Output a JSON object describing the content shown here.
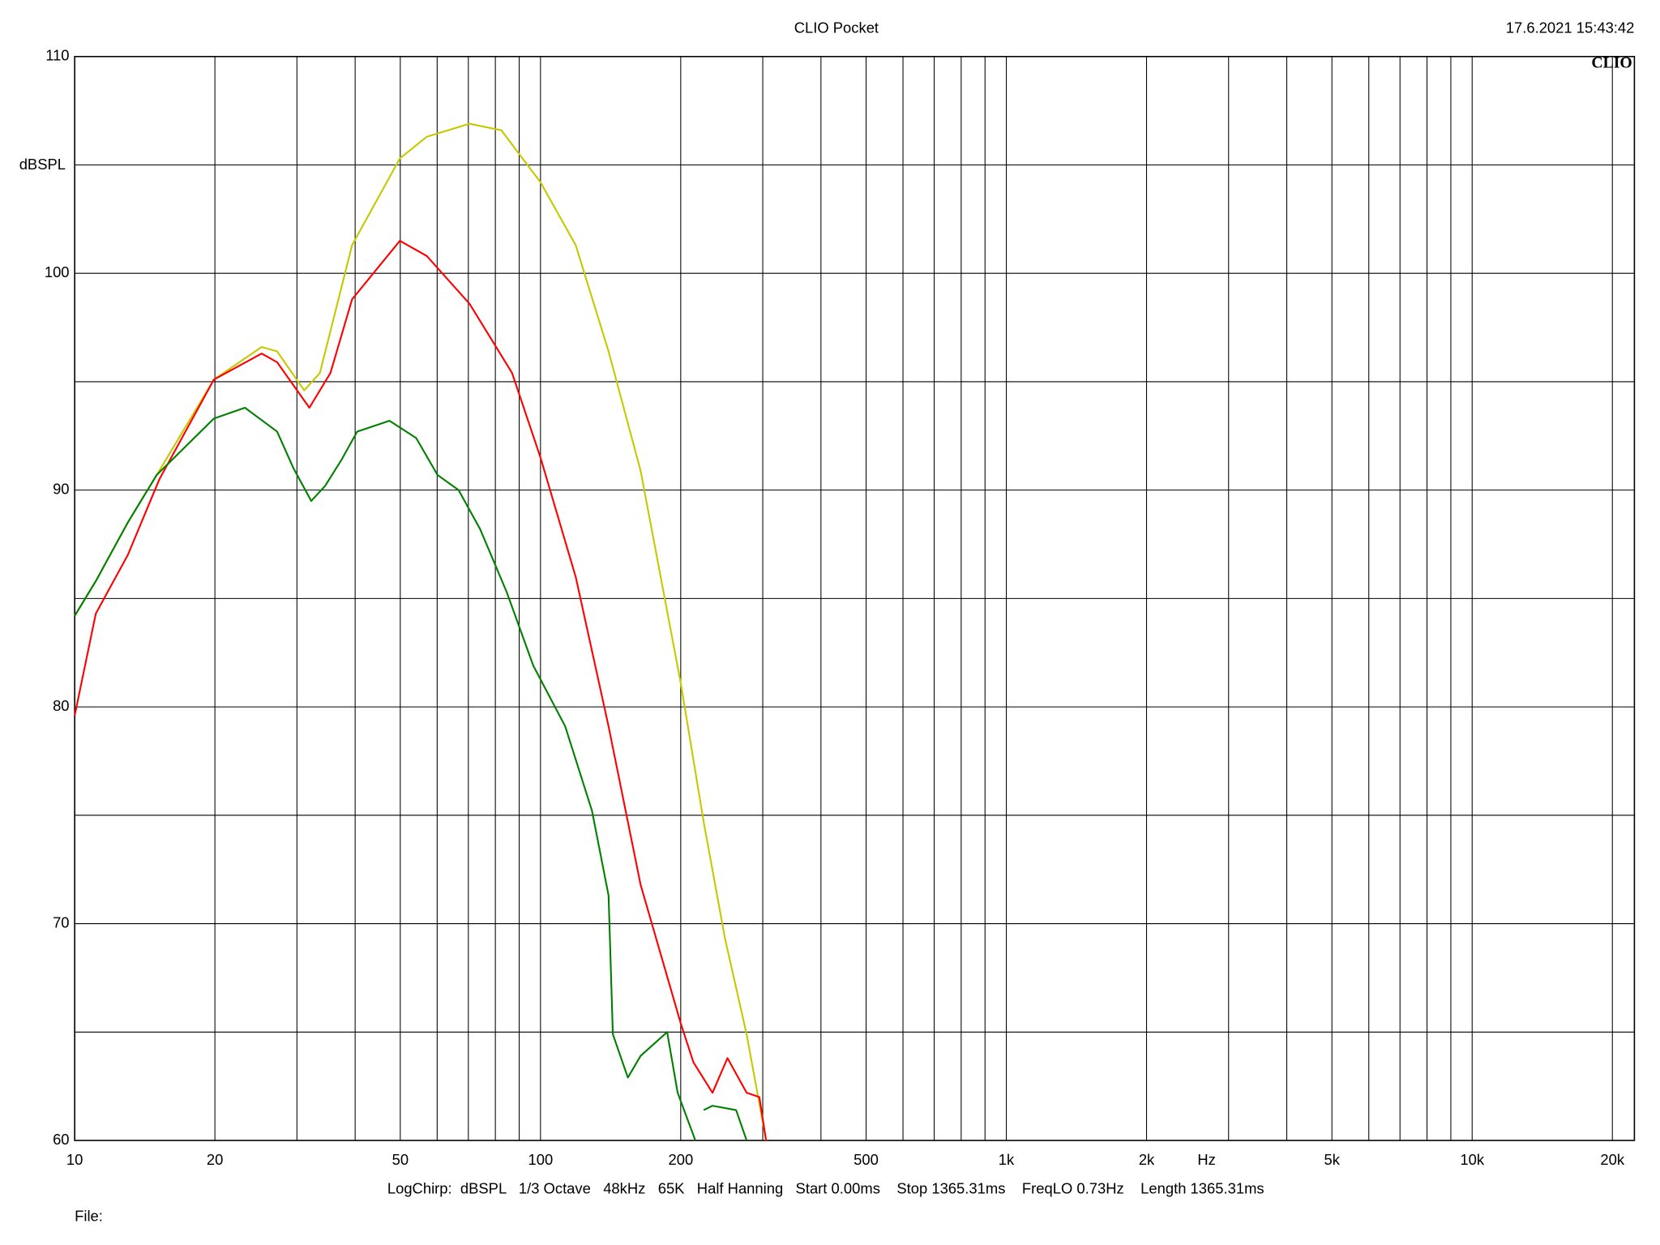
{
  "chart_data": {
    "type": "line",
    "title": "CLIO Pocket",
    "timestamp": "17.6.2021 15:43:42",
    "logo": "CLIO",
    "xlabel": "Hz",
    "ylabel": "dBSPL",
    "footer": "LogChirp:  dBSPL   1/3 Octave   48kHz   65K   Half Hanning   Start 0.00ms    Stop 1365.31ms    FreqLO 0.73Hz    Length 1365.31ms",
    "file_label": "File:",
    "xscale": "log",
    "grid": true,
    "xlim": [
      10,
      22300
    ],
    "ylim": [
      60,
      110
    ],
    "xticks": [
      10,
      20,
      50,
      100,
      200,
      500,
      {
        "value": 1000,
        "label": "1k"
      },
      {
        "value": 2000,
        "label": "2k"
      },
      {
        "value": 5000,
        "label": "5k"
      },
      {
        "value": 10000,
        "label": "10k"
      },
      {
        "value": 20000,
        "label": "20k"
      }
    ],
    "x_minor_ticks": [
      30,
      40,
      60,
      70,
      80,
      90,
      300,
      400,
      600,
      700,
      800,
      900,
      3000,
      4000,
      6000,
      7000,
      8000,
      9000
    ],
    "yticks": [
      60,
      70,
      80,
      90,
      100,
      110
    ],
    "y_minor_ticks": [
      65,
      75,
      85,
      95,
      105
    ],
    "series": [
      {
        "name": "yellow",
        "color": "#c8c800",
        "x": [
          10,
          11.1,
          13.0,
          15.2,
          19.9,
          25.2,
          27.2,
          31.1,
          33.6,
          39.4,
          49.9,
          57.0,
          70.4,
          82.4,
          100,
          119,
          140,
          164,
          200,
          224,
          249,
          277,
          305
        ],
        "values": [
          84.2,
          85.8,
          88.5,
          90.9,
          95.1,
          96.6,
          96.4,
          94.6,
          95.4,
          101.3,
          105.3,
          106.3,
          106.9,
          106.6,
          104.2,
          101.3,
          96.4,
          90.9,
          81.1,
          74.7,
          69.3,
          64.9,
          60
        ]
      },
      {
        "name": "red",
        "color": "#ff0000",
        "x": [
          10,
          11.1,
          13.0,
          15.2,
          19.9,
          25.2,
          27.2,
          31.9,
          35.4,
          39.4,
          49.9,
          57.0,
          70.4,
          86.9,
          100,
          119,
          140,
          164,
          200,
          213,
          234,
          252,
          277,
          295,
          305
        ],
        "values": [
          79.6,
          84.3,
          87.0,
          90.5,
          95.1,
          96.3,
          95.9,
          93.8,
          95.4,
          98.8,
          101.5,
          100.8,
          98.6,
          95.4,
          91.5,
          86.0,
          79.1,
          71.8,
          65.4,
          63.6,
          62.2,
          63.8,
          62.2,
          62.0,
          60
        ]
      },
      {
        "name": "green",
        "color": "#008000",
        "x": [
          10,
          11.1,
          13.0,
          15.0,
          19.9,
          23.2,
          27.2,
          29.5,
          32.2,
          34.5,
          37.4,
          40.4,
          47.4,
          54.1,
          60.1,
          66.7,
          74.2,
          84.6,
          96.5,
          113,
          129,
          140,
          143,
          154,
          164,
          187,
          197,
          215,
          null,
          224,
          234,
          263,
          277
        ],
        "values": [
          84.2,
          85.8,
          88.5,
          90.7,
          93.3,
          93.8,
          92.7,
          91.0,
          89.5,
          90.2,
          91.4,
          92.7,
          93.2,
          92.4,
          90.7,
          90.0,
          88.2,
          85.3,
          81.9,
          79.1,
          75.2,
          71.3,
          64.9,
          62.9,
          63.9,
          65.0,
          62.2,
          60,
          null,
          61.4,
          61.6,
          61.4,
          60
        ]
      }
    ]
  }
}
